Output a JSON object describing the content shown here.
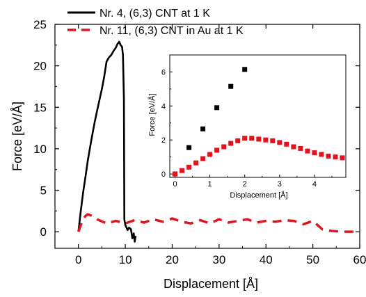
{
  "colors": {
    "black_series": "#000000",
    "red_series": "#e0141e",
    "axis": "#000000"
  },
  "chart_data": [
    {
      "type": "line",
      "title": "",
      "xlabel": "Displacement [Å]",
      "ylabel": "Force [eV/Å]",
      "xlim": [
        -5,
        60
      ],
      "ylim": [
        -2,
        25
      ],
      "xticks": [
        "0",
        "10",
        "20",
        "30",
        "40",
        "50",
        "60"
      ],
      "yticks": [
        "0",
        "5",
        "10",
        "15",
        "20",
        "25"
      ],
      "legend_position": "top",
      "series": [
        {
          "name": "Nr. 4, (6,3) CNT at 1 K",
          "style": "solid",
          "color": "#000000",
          "x": [
            0,
            0.5,
            1,
            1.5,
            2,
            2.5,
            3,
            3.5,
            4,
            4.5,
            5,
            5.5,
            6,
            6.5,
            7,
            7.5,
            8,
            8.3,
            8.7,
            9,
            9.3,
            9.5,
            9.7,
            9.8,
            10.0,
            10.5,
            10.8,
            11.2,
            11.5,
            11.8,
            12.0,
            12.2
          ],
          "y": [
            0,
            2.5,
            4.7,
            6.6,
            8.6,
            10.2,
            11.8,
            13.3,
            14.6,
            15.9,
            17.2,
            18.7,
            20.5,
            21.0,
            21.3,
            21.8,
            22.2,
            22.6,
            22.9,
            22.5,
            22.3,
            21.3,
            16.0,
            1.5,
            0.8,
            0.2,
            0.5,
            0.3,
            -0.8,
            -0.2,
            -1.2,
            -0.5
          ]
        },
        {
          "name": "Nr. 11, (6,3) CNT in Au at 1 K",
          "style": "dashed",
          "color": "#e0141e",
          "x": [
            0,
            0.5,
            1,
            1.5,
            2,
            3,
            4,
            6,
            8,
            10,
            12,
            14,
            16,
            18,
            20,
            22,
            24,
            26,
            28,
            30,
            32,
            34,
            36,
            38,
            40,
            42,
            44,
            46,
            48,
            50,
            52,
            54,
            56,
            58,
            60
          ],
          "y": [
            0,
            0.8,
            1.5,
            1.9,
            2.1,
            1.9,
            1.5,
            1.0,
            1.3,
            1.0,
            1.4,
            1.1,
            1.5,
            1.2,
            1.6,
            1.2,
            1.0,
            1.4,
            1.0,
            1.5,
            1.1,
            1.3,
            1.5,
            1.1,
            1.3,
            1.2,
            1.4,
            1.3,
            0.9,
            1.3,
            0.3,
            0.1,
            0.0,
            0.0,
            0.0
          ]
        }
      ]
    },
    {
      "type": "scatter",
      "title": "",
      "xlabel": "Displacement [Å]",
      "ylabel": "Force [eV/Å]",
      "xlim": [
        -0.15,
        4.9
      ],
      "ylim": [
        -0.2,
        7.0
      ],
      "xticks": [
        "0",
        "1",
        "2",
        "3",
        "4"
      ],
      "yticks": [
        "0",
        "2",
        "4",
        "6"
      ],
      "series": [
        {
          "color": "#000000",
          "x": [
            0,
            0.4,
            0.8,
            1.2,
            1.6,
            2.0
          ],
          "y": [
            0,
            1.55,
            2.65,
            3.9,
            5.15,
            6.15
          ]
        },
        {
          "color": "#e0141e",
          "x": [
            0,
            0.2,
            0.4,
            0.6,
            0.8,
            1.0,
            1.2,
            1.4,
            1.6,
            1.8,
            2.0,
            2.2,
            2.4,
            2.6,
            2.8,
            3.0,
            3.2,
            3.4,
            3.6,
            3.8,
            4.0,
            4.2,
            4.4,
            4.6,
            4.8
          ],
          "y": [
            0,
            0.2,
            0.4,
            0.65,
            0.9,
            1.15,
            1.4,
            1.6,
            1.8,
            1.95,
            2.1,
            2.1,
            2.05,
            2.0,
            1.95,
            1.85,
            1.75,
            1.6,
            1.5,
            1.35,
            1.25,
            1.15,
            1.05,
            1.0,
            0.95
          ]
        }
      ]
    }
  ]
}
